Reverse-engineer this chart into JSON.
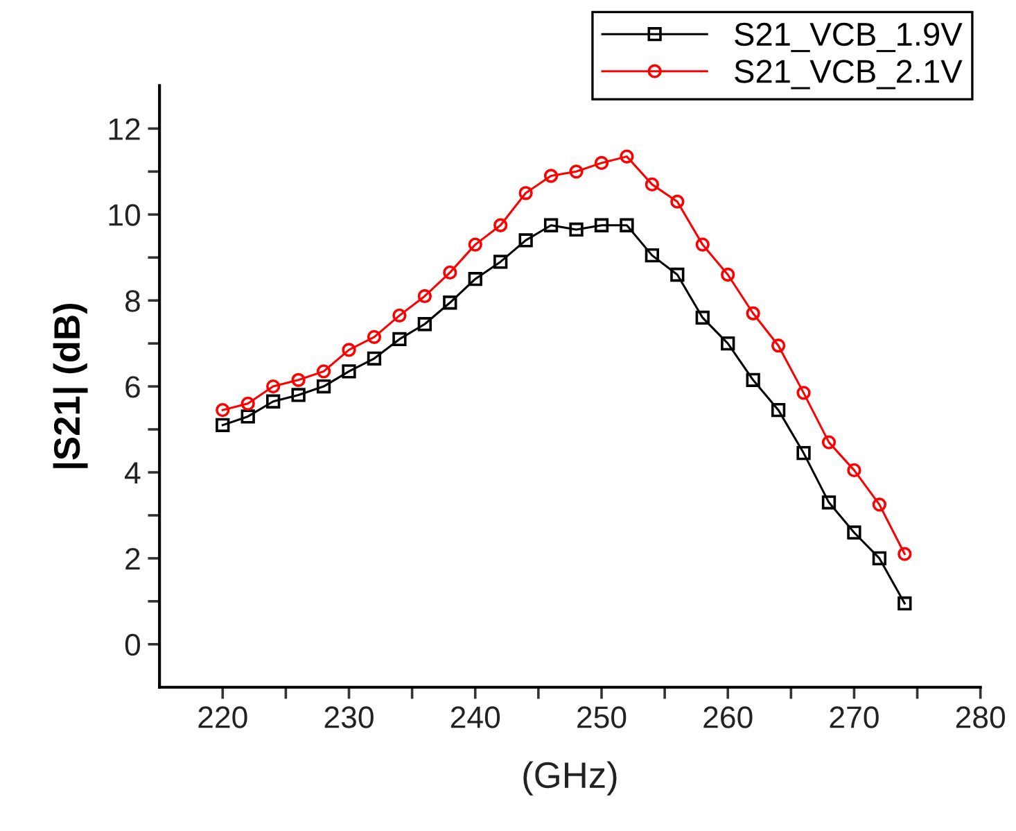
{
  "chart_data": {
    "type": "line",
    "xlabel": "(GHz)",
    "ylabel": "|S21| (dB)",
    "x": [
      220,
      222,
      224,
      226,
      228,
      230,
      232,
      234,
      236,
      238,
      240,
      242,
      244,
      246,
      248,
      250,
      252,
      254,
      256,
      258,
      260,
      262,
      264,
      266,
      268,
      270,
      272,
      274
    ],
    "series": [
      {
        "name": "S21_VCB_1.9V",
        "color": "#000000",
        "marker": "square",
        "values": [
          5.1,
          5.3,
          5.65,
          5.8,
          6.0,
          6.35,
          6.65,
          7.1,
          7.45,
          7.95,
          8.5,
          8.9,
          9.4,
          9.75,
          9.65,
          9.75,
          9.75,
          9.05,
          8.6,
          7.6,
          7.0,
          6.15,
          5.45,
          4.45,
          3.3,
          2.6,
          2.0,
          0.95
        ]
      },
      {
        "name": "S21_VCB_2.1V",
        "color": "#ff0000",
        "marker": "circle",
        "values": [
          5.45,
          5.6,
          6.0,
          6.15,
          6.35,
          6.85,
          7.15,
          7.65,
          8.1,
          8.65,
          9.3,
          9.75,
          10.5,
          10.9,
          11.0,
          11.2,
          11.35,
          10.7,
          10.3,
          9.3,
          8.6,
          7.7,
          6.95,
          5.85,
          4.7,
          4.05,
          3.25,
          2.1
        ]
      }
    ],
    "xlim": [
      215,
      280
    ],
    "ylim": [
      -1,
      13
    ],
    "xticks": [
      220,
      {
        "value": 225,
        "label": null
      },
      230,
      {
        "value": 235,
        "label": null
      },
      240,
      {
        "value": 245,
        "label": null
      },
      250,
      {
        "value": 255,
        "label": null
      },
      260,
      {
        "value": 265,
        "label": null
      },
      270,
      {
        "value": 275,
        "label": null
      },
      280
    ],
    "yticks": [
      0,
      {
        "value": 1,
        "label": null
      },
      2,
      {
        "value": 3,
        "label": null
      },
      4,
      {
        "value": 5,
        "label": null
      },
      6,
      {
        "value": 7,
        "label": null
      },
      8,
      {
        "value": 9,
        "label": null
      },
      10,
      {
        "value": 11,
        "label": null
      },
      12
    ],
    "legend": "top right",
    "grid": false,
    "line_style": "solid"
  }
}
